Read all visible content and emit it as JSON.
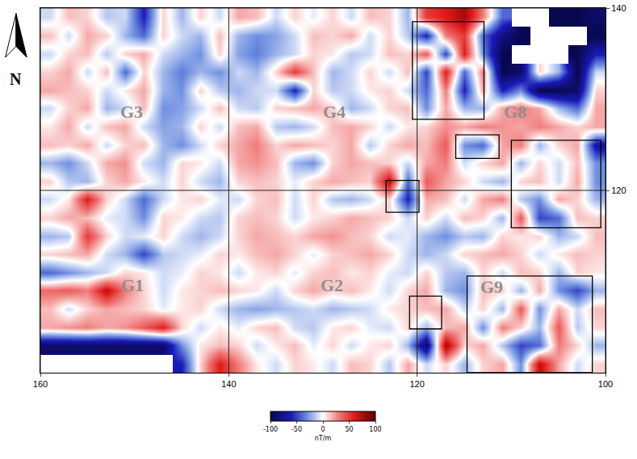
{
  "chart_data": {
    "type": "heatmap",
    "x": [
      159,
      157,
      155,
      153,
      151,
      149,
      147,
      145,
      143,
      141,
      139,
      137,
      135,
      133,
      131,
      129,
      127,
      125,
      123,
      121,
      119,
      117,
      115,
      113,
      111,
      109,
      107,
      105,
      103,
      101
    ],
    "y": [
      101,
      103,
      105,
      107,
      109,
      111,
      113,
      115,
      117,
      119,
      121,
      123,
      125,
      127,
      129,
      131,
      133,
      135,
      137,
      139
    ],
    "z": [
      [
        null,
        null,
        null,
        null,
        null,
        null,
        null,
        -60,
        10,
        60,
        30,
        5,
        -10,
        10,
        5,
        -10,
        15,
        10,
        -15,
        20,
        -10,
        10,
        -20,
        10,
        20,
        -30,
        70,
        20,
        -10,
        10
      ],
      [
        -90,
        -90,
        -90,
        -90,
        -90,
        -90,
        -90,
        -30,
        5,
        15,
        10,
        -10,
        5,
        15,
        -5,
        10,
        -10,
        5,
        10,
        -20,
        -90,
        80,
        10,
        20,
        -15,
        -50,
        -40,
        30,
        10,
        -20
      ],
      [
        20,
        25,
        30,
        20,
        25,
        40,
        60,
        10,
        -10,
        5,
        -5,
        10,
        15,
        -10,
        -15,
        5,
        10,
        -5,
        -10,
        10,
        -20,
        15,
        20,
        -30,
        30,
        10,
        -20,
        40,
        -15,
        10
      ],
      [
        15,
        -10,
        10,
        20,
        15,
        10,
        -5,
        5,
        10,
        -10,
        -20,
        -25,
        -20,
        -15,
        -10,
        -20,
        -15,
        -10,
        5,
        10,
        15,
        20,
        -10,
        10,
        -20,
        40,
        -30,
        20,
        -10,
        15
      ],
      [
        35,
        40,
        30,
        70,
        30,
        10,
        -10,
        5,
        10,
        15,
        10,
        5,
        -10,
        10,
        20,
        10,
        15,
        5,
        -10,
        10,
        20,
        -20,
        -30,
        15,
        10,
        -20,
        20,
        -30,
        -50,
        -20
      ],
      [
        -40,
        -30,
        -20,
        -10,
        10,
        5,
        -10,
        -5,
        10,
        5,
        -10,
        5,
        10,
        -5,
        10,
        15,
        5,
        10,
        -5,
        -10,
        10,
        -15,
        -20,
        10,
        -10,
        15,
        10,
        -20,
        10,
        5
      ],
      [
        10,
        15,
        20,
        -10,
        -20,
        -50,
        -15,
        -10,
        -5,
        10,
        5,
        15,
        20,
        10,
        -5,
        10,
        15,
        20,
        10,
        -10,
        -20,
        -10,
        10,
        15,
        20,
        10,
        -10,
        5,
        15,
        10
      ],
      [
        -20,
        -15,
        50,
        10,
        -10,
        -5,
        10,
        -10,
        -20,
        -10,
        10,
        20,
        15,
        10,
        20,
        25,
        15,
        10,
        -10,
        -5,
        -20,
        -30,
        -15,
        -20,
        10,
        5,
        10,
        -20,
        -10,
        15
      ],
      [
        10,
        20,
        15,
        -5,
        -10,
        -30,
        10,
        5,
        -10,
        -15,
        10,
        15,
        10,
        -10,
        5,
        10,
        20,
        15,
        10,
        -10,
        10,
        -10,
        15,
        10,
        -20,
        40,
        -50,
        -40,
        15,
        10
      ],
      [
        -10,
        5,
        60,
        10,
        -10,
        -40,
        -10,
        5,
        10,
        -5,
        -10,
        10,
        15,
        -10,
        10,
        -15,
        -20,
        -10,
        10,
        -60,
        20,
        15,
        -10,
        20,
        30,
        -15,
        -30,
        20,
        10,
        -20
      ],
      [
        10,
        -15,
        -20,
        10,
        20,
        5,
        -10,
        10,
        -10,
        -20,
        10,
        15,
        10,
        -5,
        10,
        20,
        15,
        10,
        70,
        -40,
        40,
        20,
        10,
        -10,
        -20,
        10,
        15,
        -10,
        20,
        -30
      ],
      [
        -20,
        -30,
        -10,
        20,
        25,
        -10,
        -20,
        10,
        5,
        -10,
        20,
        25,
        15,
        -20,
        -30,
        10,
        20,
        15,
        10,
        -10,
        20,
        30,
        -10,
        10,
        20,
        -20,
        10,
        -10,
        15,
        -30
      ],
      [
        15,
        10,
        20,
        -10,
        10,
        15,
        -20,
        -30,
        -10,
        10,
        20,
        30,
        10,
        20,
        15,
        10,
        20,
        -15,
        10,
        20,
        15,
        40,
        -30,
        -40,
        20,
        30,
        -20,
        10,
        20,
        -70
      ],
      [
        5,
        20,
        -10,
        15,
        20,
        -10,
        -25,
        -20,
        10,
        -10,
        15,
        20,
        -15,
        -20,
        -10,
        15,
        20,
        10,
        -10,
        5,
        10,
        25,
        20,
        30,
        25,
        20,
        30,
        20,
        10,
        20
      ],
      [
        -10,
        10,
        20,
        -20,
        -10,
        15,
        -30,
        -25,
        -10,
        15,
        -10,
        -15,
        10,
        15,
        20,
        10,
        -20,
        -10,
        10,
        15,
        -30,
        20,
        -20,
        -20,
        20,
        30,
        20,
        -20,
        -40,
        20
      ],
      [
        20,
        15,
        10,
        -10,
        5,
        20,
        -20,
        -30,
        10,
        -15,
        -20,
        -10,
        -10,
        -60,
        10,
        -15,
        -10,
        5,
        10,
        -10,
        -40,
        30,
        -60,
        20,
        -60,
        -30,
        -100,
        -100,
        -90,
        10
      ],
      [
        10,
        20,
        -10,
        15,
        -40,
        10,
        -20,
        -35,
        -20,
        -30,
        -10,
        -20,
        10,
        50,
        15,
        -20,
        -10,
        10,
        -10,
        15,
        -50,
        60,
        -40,
        30,
        -100,
        -90,
        10,
        -20,
        -100,
        -10
      ],
      [
        -10,
        10,
        15,
        -15,
        10,
        20,
        -10,
        -20,
        -30,
        10,
        -25,
        -35,
        -20,
        -10,
        10,
        5,
        -15,
        -10,
        15,
        10,
        40,
        -50,
        60,
        -30,
        -100,
        null,
        null,
        null,
        -100,
        -60
      ],
      [
        15,
        -10,
        20,
        10,
        -20,
        -40,
        10,
        -10,
        -20,
        15,
        -20,
        -30,
        -25,
        -10,
        15,
        10,
        20,
        -10,
        10,
        -15,
        -60,
        30,
        50,
        -40,
        -80,
        -100,
        null,
        null,
        null,
        -100
      ],
      [
        -10,
        15,
        10,
        -15,
        -10,
        -60,
        10,
        -20,
        10,
        -10,
        20,
        15,
        -10,
        10,
        -5,
        10,
        -10,
        15,
        10,
        -20,
        50,
        60,
        80,
        30,
        -40,
        null,
        null,
        -100,
        -100,
        -90
      ]
    ],
    "xlim": [
      160,
      100
    ],
    "ylim": [
      100,
      140
    ],
    "xticks": [
      160,
      140,
      120,
      100
    ],
    "yticks": [
      120,
      140
    ],
    "grid": true,
    "colorbar": {
      "range": [
        -100,
        100
      ],
      "ticks": [
        -100,
        -50,
        0,
        50,
        100
      ],
      "title": "nT/m"
    },
    "labels": [
      {
        "text": "G1",
        "x": 150.2,
        "y": 109.6
      },
      {
        "text": "G2",
        "x": 129.1,
        "y": 109.6
      },
      {
        "text": "G3",
        "x": 150.3,
        "y": 128.6
      },
      {
        "text": "G4",
        "x": 128.8,
        "y": 128.6
      },
      {
        "text": "G8",
        "x": 109.6,
        "y": 128.6
      },
      {
        "text": "G9",
        "x": 112.1,
        "y": 109.4
      }
    ],
    "boxes": [
      {
        "x0": 120.5,
        "x1": 112.9,
        "y0": 127.8,
        "y1": 138.5
      },
      {
        "x0": 115.9,
        "x1": 111.3,
        "y0": 123.5,
        "y1": 126.1
      },
      {
        "x0": 110.0,
        "x1": 100.5,
        "y0": 115.9,
        "y1": 125.5
      },
      {
        "x0": 123.3,
        "x1": 119.8,
        "y0": 117.6,
        "y1": 121.1
      },
      {
        "x0": 120.8,
        "x1": 117.4,
        "y0": 104.8,
        "y1": 108.4
      },
      {
        "x0": 114.7,
        "x1": 101.4,
        "y0": 100.0,
        "y1": 110.6
      }
    ],
    "north_label": "N"
  }
}
